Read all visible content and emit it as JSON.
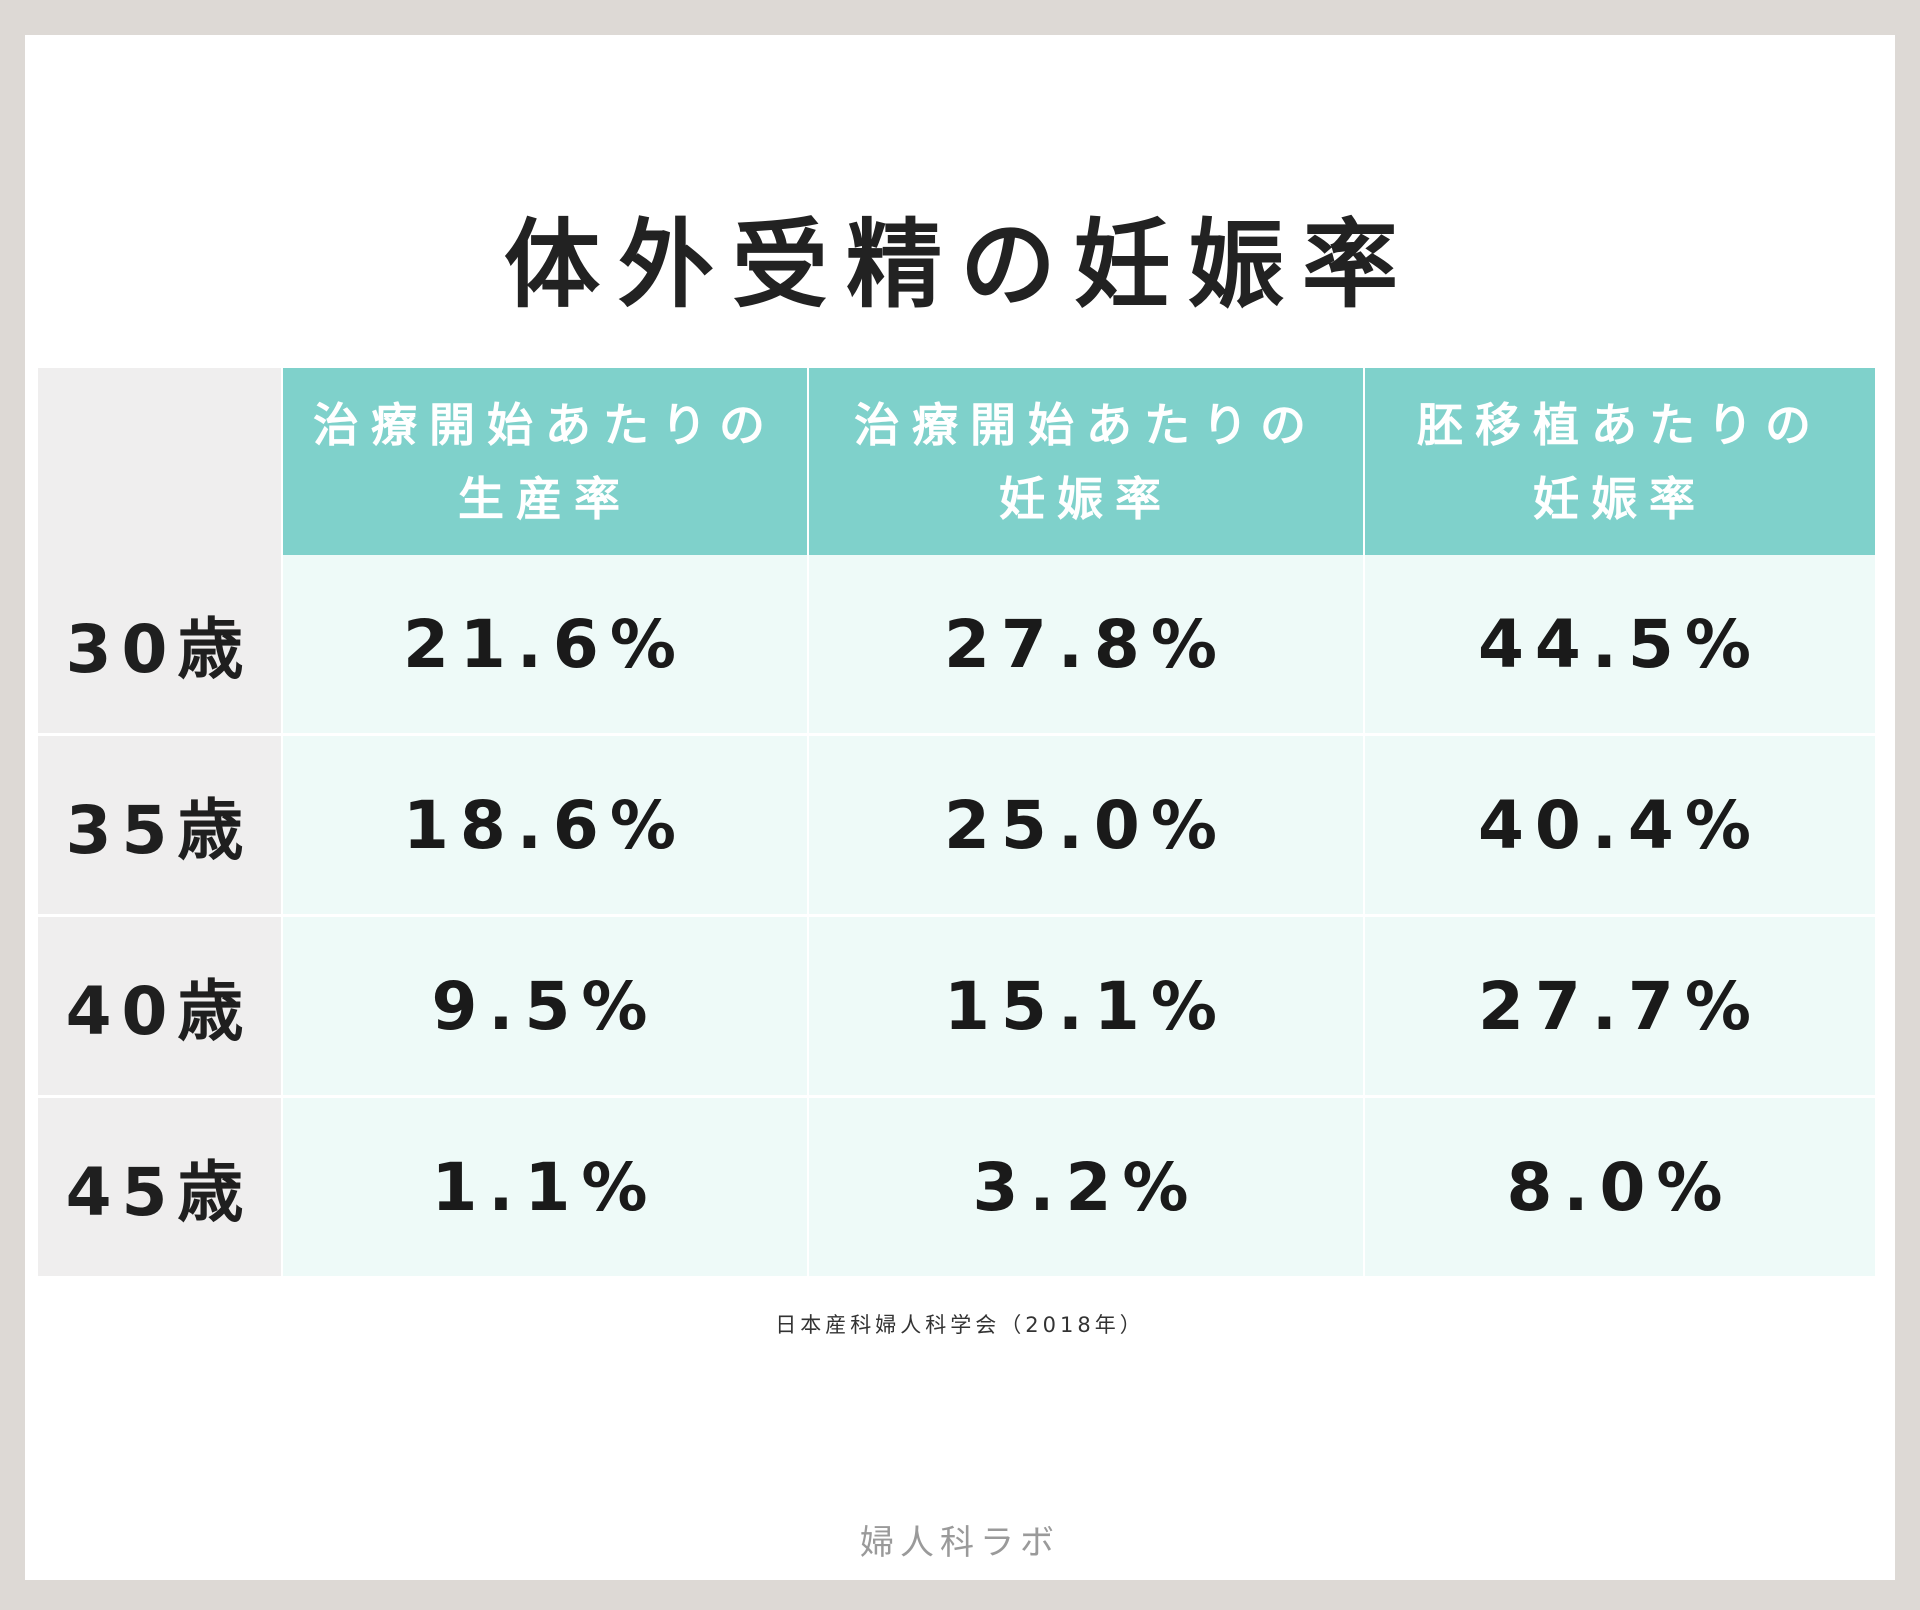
{
  "title": "体外受精の妊娠率",
  "chart_data": {
    "type": "table",
    "title": "体外受精の妊娠率",
    "columns": [
      {
        "line1": "治療開始あたりの",
        "line2": "生産率"
      },
      {
        "line1": "治療開始あたりの",
        "line2": "妊娠率"
      },
      {
        "line1": "胚移植あたりの",
        "line2": "妊娠率"
      }
    ],
    "rows": [
      {
        "age": "30歳",
        "values": [
          "21.6%",
          "27.8%",
          "44.5%"
        ]
      },
      {
        "age": "35歳",
        "values": [
          "18.6%",
          "25.0%",
          "40.4%"
        ]
      },
      {
        "age": "40歳",
        "values": [
          "9.5%",
          "15.1%",
          "27.7%"
        ]
      },
      {
        "age": "45歳",
        "values": [
          "1.1%",
          "3.2%",
          "8.0%"
        ]
      }
    ]
  },
  "source": "日本産科婦人科学会（2018年）",
  "logo": "婦人科ラボ",
  "colors": {
    "header_bg": "#7fd1cb",
    "cell_bg": "#eefaf8",
    "age_bg": "#efeeee",
    "frame_bg": "#ddd9d5"
  }
}
